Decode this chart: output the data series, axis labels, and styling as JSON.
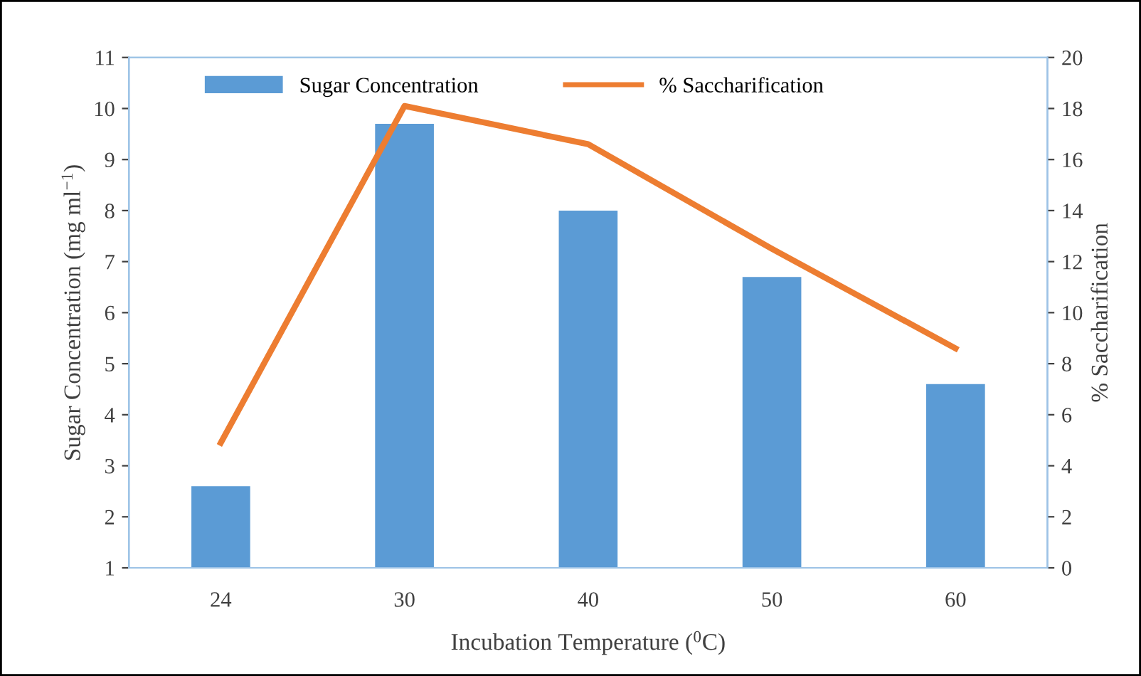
{
  "chart_data": {
    "type": "bar",
    "categories": [
      "24",
      "30",
      "40",
      "50",
      "60"
    ],
    "xlabel": "Incubation Temperature ($^{0}$C)",
    "ylabel": "Sugar Concentration (mg ml$^{−1}$)",
    "y2label": "% Saccharification",
    "series": [
      {
        "name": "Sugar Concentration",
        "color": "#5b9bd5",
        "values": [
          2.6,
          9.7,
          8.0,
          6.7,
          4.6
        ]
      },
      {
        "name": "% Saccharification",
        "color": "#ed7d31",
        "type": "line",
        "axis": "y2",
        "values": [
          4.9,
          18.1,
          16.6,
          12.5,
          8.6
        ]
      }
    ],
    "ylim": [
      1,
      11
    ],
    "yticks": [
      1,
      2,
      3,
      4,
      5,
      6,
      7,
      8,
      9,
      10,
      11
    ],
    "y2lim": [
      0,
      20
    ],
    "y2ticks": [
      0,
      2,
      4,
      6,
      8,
      10,
      12,
      14,
      16,
      18,
      20
    ],
    "grid": false,
    "legend": "top",
    "marker": "none"
  }
}
